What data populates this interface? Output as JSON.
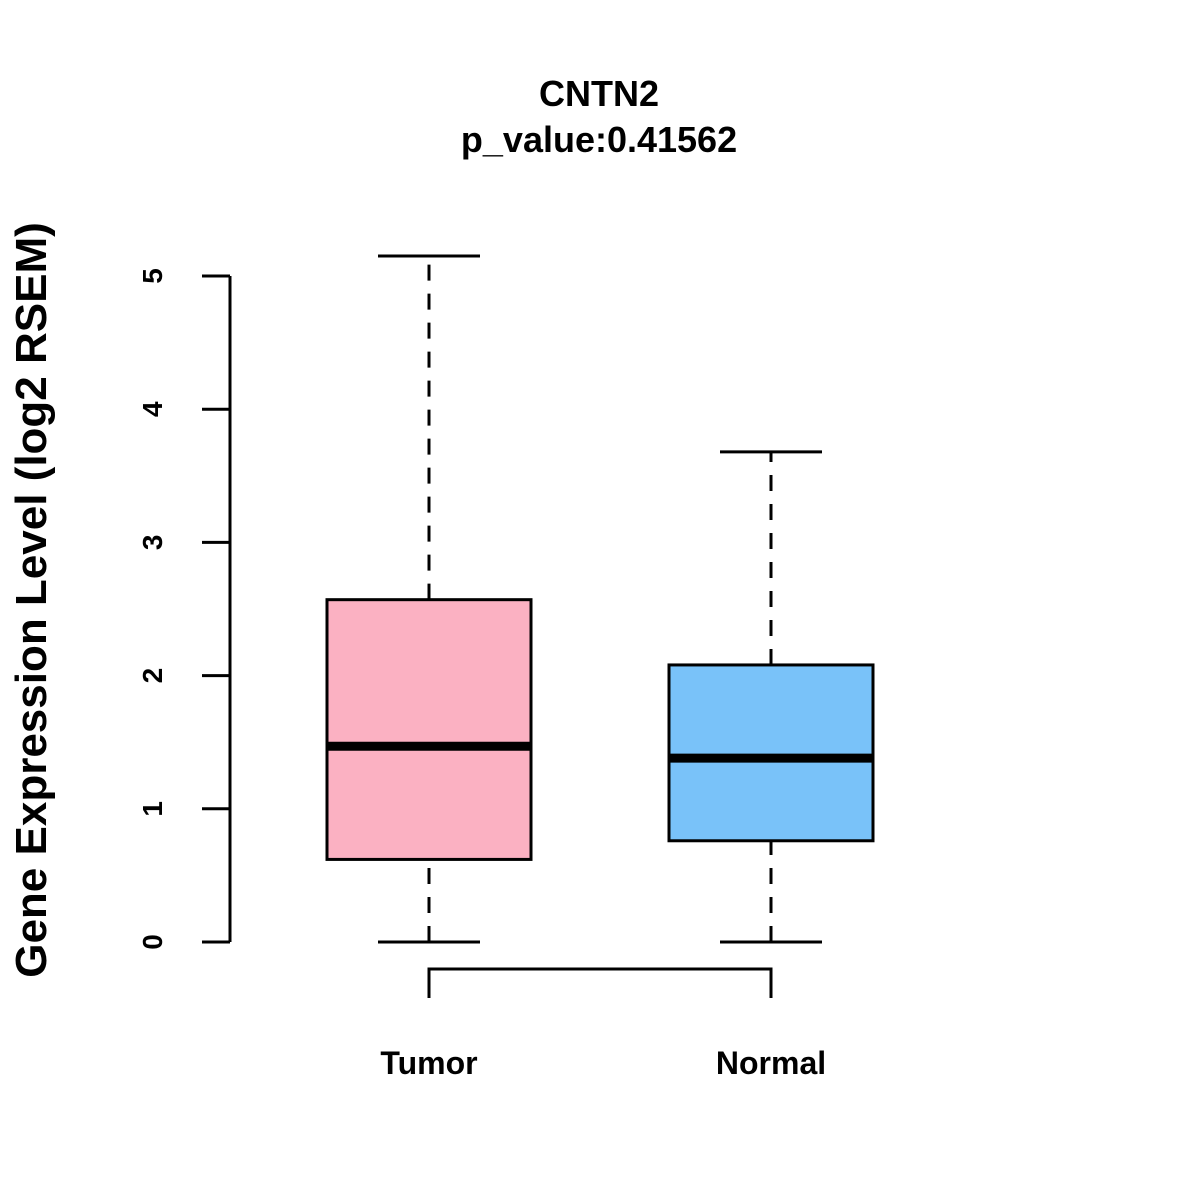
{
  "chart_data": {
    "type": "box",
    "title": "CNTN2",
    "subtitle": "p_value:0.41562",
    "xlabel": "",
    "ylabel": "Gene Expression Level (log2 RSEM)",
    "ylim": [
      0,
      5
    ],
    "yticks": [
      0,
      1,
      2,
      3,
      4,
      5
    ],
    "categories": [
      "Tumor",
      "Normal"
    ],
    "boxes": [
      {
        "name": "Tumor",
        "whisker_low": 0.0,
        "q1": 0.62,
        "median": 1.47,
        "q3": 2.57,
        "whisker_high": 5.15,
        "color": "#FBB1C2"
      },
      {
        "name": "Normal",
        "whisker_low": 0.0,
        "q1": 0.76,
        "median": 1.38,
        "q3": 2.08,
        "whisker_high": 3.68,
        "color": "#79C2F9"
      }
    ],
    "comparison_bracket": {
      "from": "Tumor",
      "to": "Normal"
    }
  }
}
